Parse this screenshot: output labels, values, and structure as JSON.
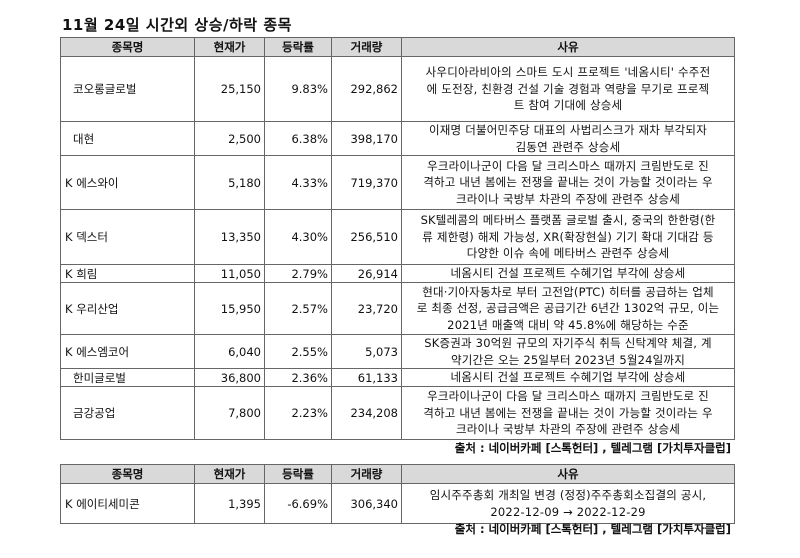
{
  "title": "11월 24일  시간외 상승/하락 종목",
  "headers": [
    "종목명",
    "현재가",
    "등락률",
    "거래량",
    "사유"
  ],
  "rising": [
    {
      "name": "코오롱글로벌",
      "price": "25,150",
      "rate": "9.83%",
      "volume": "292,862",
      "reason": [
        "사우디아라비아의 스마트 도시 프로젝트 '네옴시티' 수주전",
        "에 도전장, 친환경 건설 기술 경험과 역량을 무기로 프로젝",
        "트 참여 기대에 상승세"
      ]
    },
    {
      "name": "대현",
      "price": "2,500",
      "rate": "6.38%",
      "volume": "398,170",
      "reason": [
        "이재명 더불어민주당 대표의 사법리스크가 재차 부각되자",
        "김동연 관련주 상승세"
      ]
    },
    {
      "name": "K 에스와이",
      "price": "5,180",
      "rate": "4.33%",
      "volume": "719,370",
      "reason": [
        "우크라이나군이 다음 달 크리스마스 때까지 크림반도로 진",
        "격하고 내년 봄에는 전쟁을 끝내는 것이 가능할 것이라는 우",
        "크라이나 국방부 차관의 주장에 관련주 상승세"
      ]
    },
    {
      "name": "K 덱스터",
      "price": "13,350",
      "rate": "4.30%",
      "volume": "256,510",
      "reason": [
        "SK텔레콤의 메타버스 플랫폼 글로벌 출시, 중국의 한한령(한",
        "류 제한령) 해제 가능성, XR(확장현실) 기기 확대 기대감 등",
        "다양한 이슈 속에 메타버스 관련주 상승세"
      ]
    },
    {
      "name": "K 희림",
      "price": "11,050",
      "rate": "2.79%",
      "volume": "26,914",
      "reason": [
        "네옴시티 건설 프로젝트 수혜기업 부각에 상승세"
      ]
    },
    {
      "name": "K 우리산업",
      "price": "15,950",
      "rate": "2.57%",
      "volume": "23,720",
      "reason": [
        "현대·기아자동차로 부터 고전압(PTC) 히터를 공급하는 업체",
        "로 최종 선정, 공급금액은 공급기간 6년간 1302억 규모, 이는",
        "2021년 매출액 대비 약 45.8%에 해당하는 수준"
      ]
    },
    {
      "name": "K 에스엠코어",
      "price": "6,040",
      "rate": "2.55%",
      "volume": "5,073",
      "reason": [
        "SK증권과 30억원 규모의 자기주식 취득 신탁계약 체결, 계",
        "약기간은 오는 25일부터 2023년 5월24일까지"
      ]
    },
    {
      "name": "한미글로벌",
      "price": "36,800",
      "rate": "2.36%",
      "volume": "61,133",
      "reason": [
        "네옴시티 건설 프로젝트 수혜기업 부각에 상승세"
      ]
    },
    {
      "name": "금강공업",
      "price": "7,800",
      "rate": "2.23%",
      "volume": "234,208",
      "reason": [
        "우크라이나군이 다음 달 크리스마스 때까지 크림반도로 진",
        "격하고 내년 봄에는 전쟁을 끝내는 것이 가능할 것이라는 우",
        "크라이나 국방부 차관의 주장에 관련주 상승세"
      ]
    }
  ],
  "source1": "출처 : 네이버카페 [스톡헌터] , 텔레그램 [가치투자클럽]",
  "falling": [
    {
      "name": "K 에이티세미콘",
      "price": "1,395",
      "rate": "-6.69%",
      "volume": "306,340",
      "reason": [
        "임시주주총회 개최일 변경 (정정)주주총회소집결의 공시,",
        "2022-12-09 → 2022-12-29"
      ]
    }
  ],
  "source2": "출처 : 네이버카페 [스톡헌터] , 텔레그램 [가치투자클럽]"
}
